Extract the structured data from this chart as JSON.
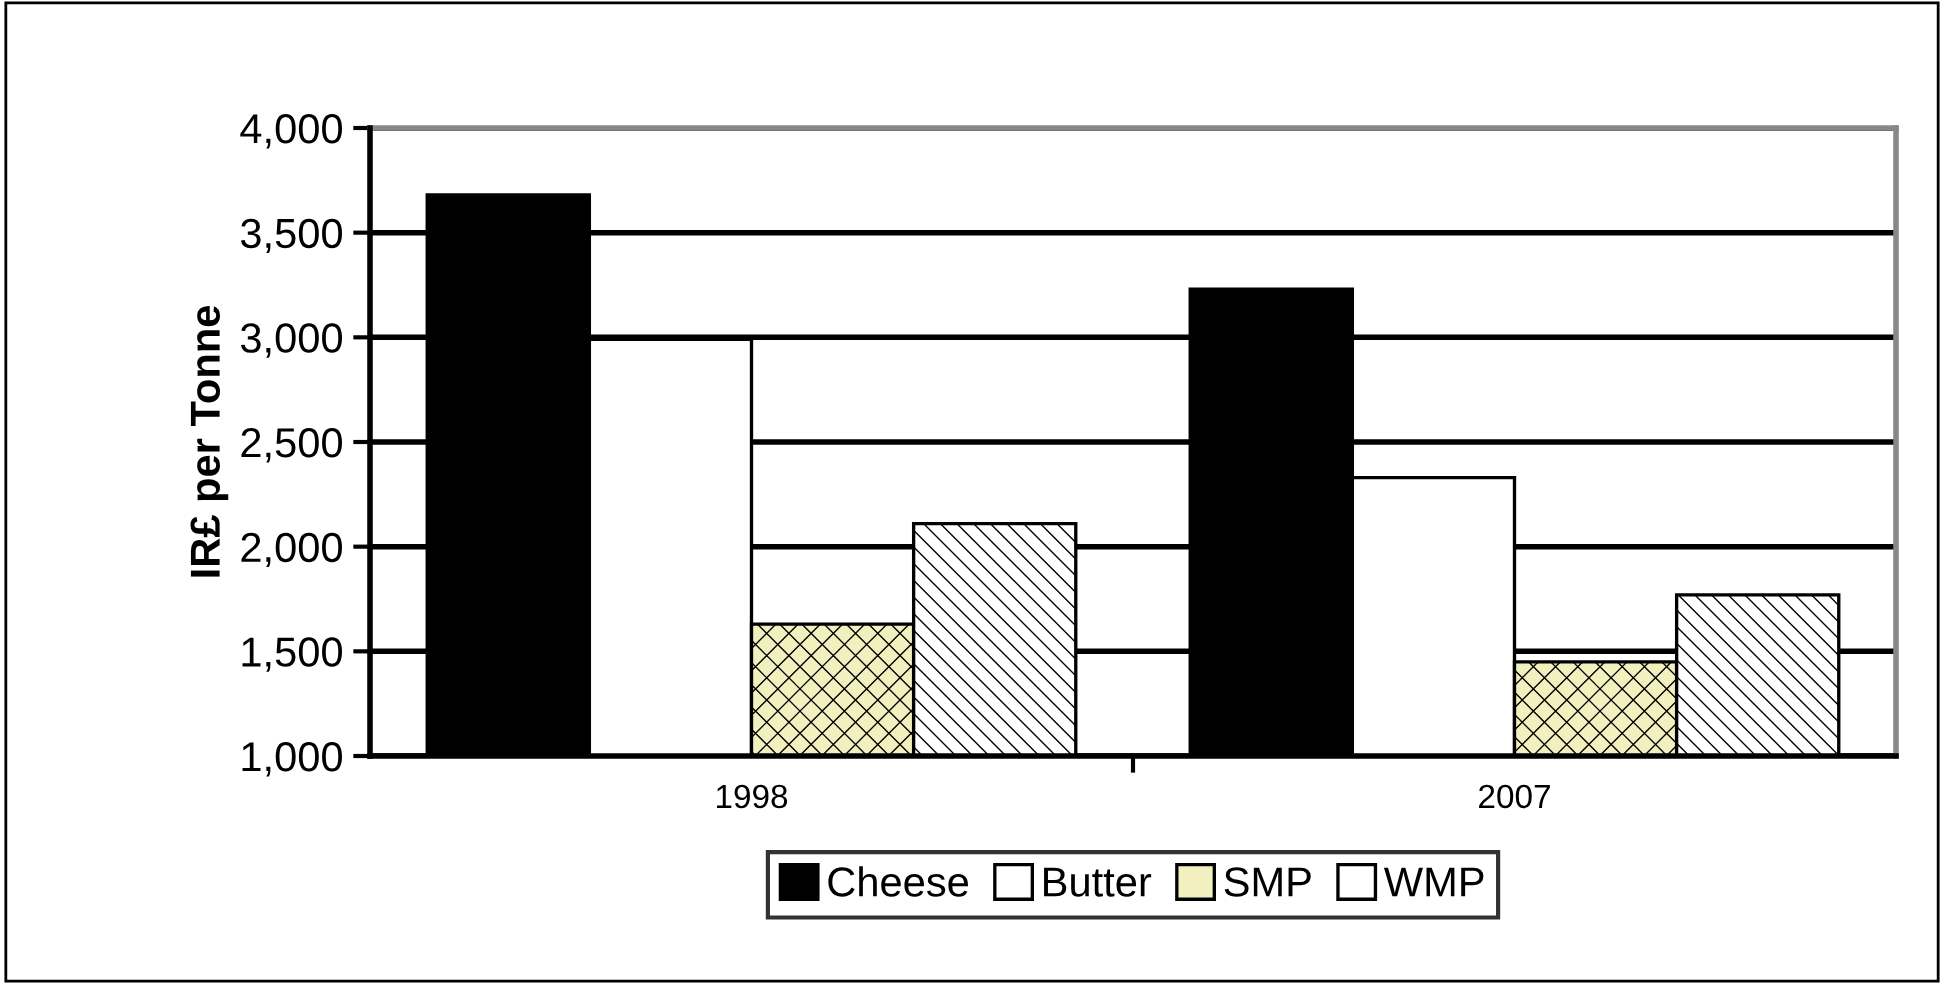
{
  "chart_data": {
    "type": "bar",
    "ylabel": "IR£ per Tonne",
    "categories": [
      "1998",
      "2007"
    ],
    "series": [
      {
        "name": "Cheese",
        "color": "#000000",
        "values": [
          3680,
          3230
        ]
      },
      {
        "name": "Butter",
        "color": "#ffffff",
        "values": [
          2990,
          2330
        ]
      },
      {
        "name": "SMP",
        "color": "#f3f0c0",
        "values": [
          1630,
          1450
        ]
      },
      {
        "name": "WMP",
        "color": "#ffffff",
        "values": [
          2110,
          1770
        ]
      }
    ],
    "ylim": [
      1000,
      4000
    ],
    "yticks": [
      {
        "value": 1000,
        "label": "1,000"
      },
      {
        "value": 1500,
        "label": "1,500"
      },
      {
        "value": 2000,
        "label": "2,000"
      },
      {
        "value": 2500,
        "label": "2,500"
      },
      {
        "value": 3000,
        "label": "3,000"
      },
      {
        "value": 3500,
        "label": "3,500"
      },
      {
        "value": 4000,
        "label": "4,000"
      }
    ],
    "grid": "y",
    "legend": "bottom"
  }
}
